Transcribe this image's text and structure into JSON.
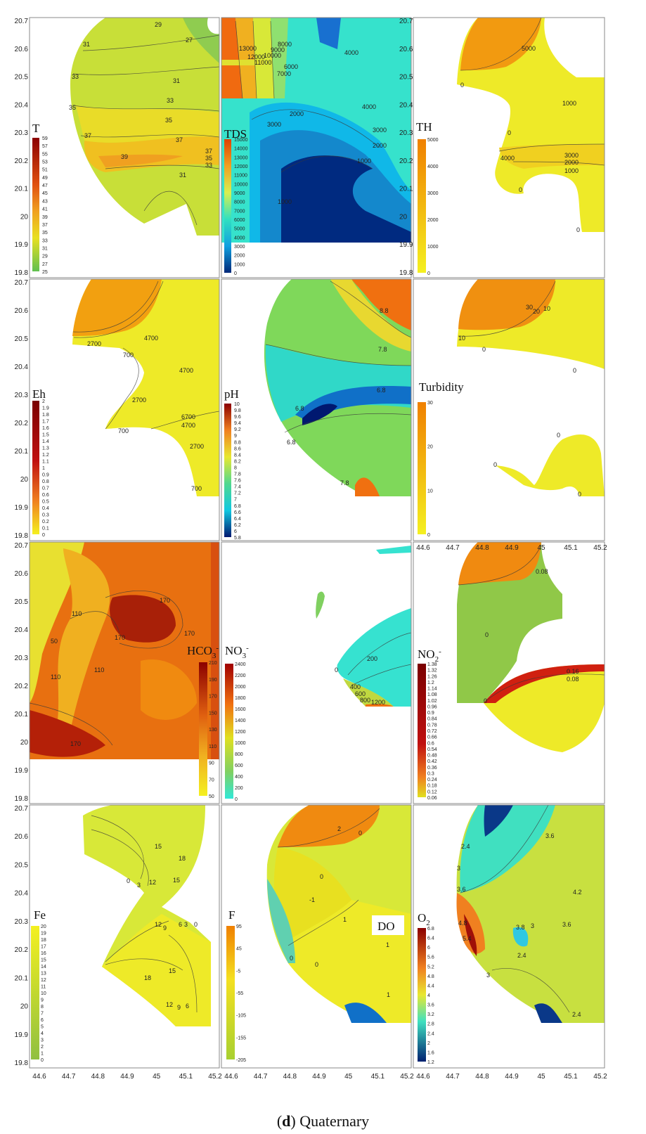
{
  "figure": {
    "caption_letter": "d",
    "caption_rest": "Quaternary",
    "y_ticks": [
      "20.7",
      "20.6",
      "20.5",
      "20.4",
      "20.3",
      "20.2",
      "20.1",
      "20",
      "19.9",
      "19.8"
    ],
    "x_ticks": [
      "44.6",
      "44.7",
      "44.8",
      "44.9",
      "45",
      "45.1",
      "45.2"
    ],
    "colors": {
      "red": "#b01010",
      "orange": "#f08000",
      "yellow": "#f2ee20",
      "cyan": "#34e0d8",
      "blue": "#1060c0",
      "navy": "#002878"
    }
  },
  "panels": [
    {
      "id": "T",
      "label": "T",
      "legend": [
        "59",
        "57",
        "55",
        "53",
        "51",
        "49",
        "47",
        "45",
        "43",
        "41",
        "39",
        "37",
        "35",
        "33",
        "31",
        "29",
        "27",
        "25"
      ],
      "contours": [
        "31",
        "29",
        "27",
        "33",
        "31",
        "35",
        "33",
        "37",
        "35",
        "37",
        "39",
        "37",
        "35",
        "33",
        "31"
      ]
    },
    {
      "id": "TDS",
      "label": "TDS",
      "legend": [
        "15000",
        "14000",
        "13000",
        "12000",
        "11000",
        "10000",
        "9000",
        "8000",
        "7000",
        "6000",
        "5000",
        "4000",
        "3000",
        "2000",
        "1000",
        "0"
      ],
      "contours": [
        "13000",
        "12000",
        "11000",
        "10000",
        "9000",
        "8000",
        "7000",
        "6000",
        "4000",
        "4000",
        "3000",
        "2000",
        "1000",
        "2000",
        "3000",
        "1000"
      ]
    },
    {
      "id": "TH",
      "label": "TH",
      "legend": [
        "5000",
        "4000",
        "3000",
        "2000",
        "1000",
        "0"
      ],
      "contours": [
        "5000",
        "0",
        "1000",
        "0",
        "3000",
        "2000",
        "1000",
        "0",
        "0",
        "4000"
      ]
    },
    {
      "id": "Eh",
      "label": "Eh",
      "legend": [
        "2",
        "1.9",
        "1.8",
        "1.7",
        "1.6",
        "1.5",
        "1.4",
        "1.3",
        "1.2",
        "1.1",
        "1",
        "0.9",
        "0.8",
        "0.7",
        "0.6",
        "0.5",
        "0.4",
        "0.3",
        "0.2",
        "0.1",
        "0"
      ],
      "contours": [
        "2700",
        "700",
        "4700",
        "4700",
        "2700",
        "700",
        "6700",
        "4700",
        "2700",
        "700"
      ]
    },
    {
      "id": "pH",
      "label": "pH",
      "legend": [
        "10",
        "9.8",
        "9.6",
        "9.4",
        "9.2",
        "9",
        "8.8",
        "8.6",
        "8.4",
        "8.2",
        "8",
        "7.8",
        "7.6",
        "7.4",
        "7.2",
        "7",
        "6.8",
        "6.6",
        "6.4",
        "6.2",
        "6",
        "5.8"
      ],
      "contours": [
        "8.8",
        "7.8",
        "6.8",
        "6.8",
        "6.8",
        "7.8"
      ]
    },
    {
      "id": "Turbidity",
      "label": "Turbidity",
      "legend": [
        "30",
        "20",
        "10",
        "0"
      ],
      "contours": [
        "30",
        "20",
        "10",
        "10",
        "0",
        "0",
        "0",
        "0",
        "0"
      ]
    },
    {
      "id": "HCO3",
      "label": "HCO",
      "label_sub": "3",
      "label_sup": "-",
      "legend": [
        "210",
        "190",
        "170",
        "150",
        "130",
        "110",
        "90",
        "70",
        "50"
      ],
      "contours": [
        "170",
        "110",
        "170",
        "50",
        "170",
        "110",
        "110",
        "170"
      ]
    },
    {
      "id": "NO3",
      "label": "NO",
      "label_sub": "3",
      "label_sup": "-",
      "legend": [
        "2400",
        "2200",
        "2000",
        "1800",
        "1600",
        "1400",
        "1200",
        "1000",
        "800",
        "600",
        "400",
        "200",
        "0"
      ],
      "contours": [
        "200",
        "400",
        "600",
        "800",
        "1200",
        "0"
      ]
    },
    {
      "id": "NO2",
      "label": "NO",
      "label_sub": "2",
      "label_sup": "-",
      "legend": [
        "1.38",
        "1.32",
        "1.26",
        "1.2",
        "1.14",
        "1.08",
        "1.02",
        "0.96",
        "0.9",
        "0.84",
        "0.78",
        "0.72",
        "0.66",
        "0.6",
        "0.54",
        "0.48",
        "0.42",
        "0.36",
        "0.3",
        "0.24",
        "0.18",
        "0.12",
        "0.06"
      ],
      "contours": [
        "0.08",
        "0",
        "0.16",
        "0.08",
        "0"
      ]
    },
    {
      "id": "Fe",
      "label": "Fe",
      "legend": [
        "20",
        "19",
        "18",
        "17",
        "16",
        "15",
        "14",
        "13",
        "12",
        "11",
        "10",
        "9",
        "8",
        "7",
        "6",
        "5",
        "4",
        "3",
        "2",
        "1",
        "0"
      ],
      "contours": [
        "18",
        "15",
        "15",
        "12",
        "0",
        "3",
        "12",
        "9",
        "6",
        "3",
        "0",
        "18",
        "15",
        "12",
        "9",
        "6"
      ]
    },
    {
      "id": "F",
      "label": "F",
      "legend": [
        "95",
        "45",
        "-5",
        "-55",
        "-105",
        "-155",
        "-205"
      ],
      "contours": [
        "2",
        "0",
        "0",
        "-1",
        "1",
        "1",
        "0",
        "1",
        "0"
      ]
    },
    {
      "id": "O2",
      "label": "O",
      "label_sub": "2",
      "note": "DO",
      "legend": [
        "6.8",
        "6.4",
        "6",
        "5.6",
        "5.2",
        "4.8",
        "4.4",
        "4",
        "3.6",
        "3.2",
        "2.8",
        "2.4",
        "2",
        "1.6",
        "1.2"
      ],
      "contours": [
        "2.4",
        "3.6",
        "3",
        "3.6",
        "4.2",
        "4.8",
        "5.4",
        "3.8",
        "3",
        "2.4",
        "3.6",
        "3",
        "2.4"
      ]
    }
  ]
}
